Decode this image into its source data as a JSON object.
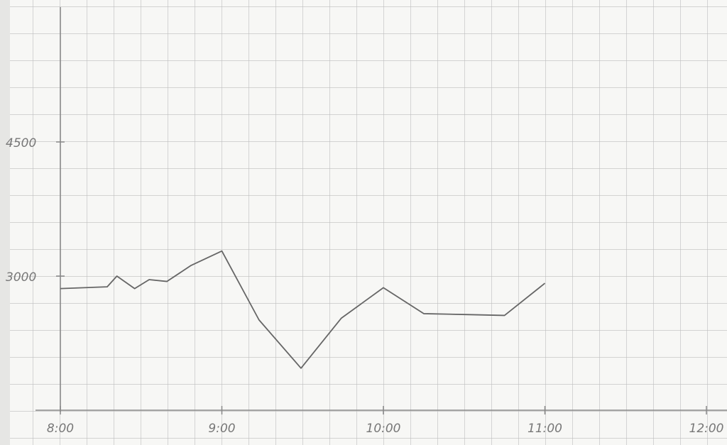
{
  "chart_data": {
    "type": "line",
    "x": [
      8.0,
      8.29,
      8.35,
      8.46,
      8.55,
      8.66,
      8.81,
      9.0,
      9.23,
      9.49,
      9.74,
      10.0,
      10.25,
      10.51,
      10.75,
      11.0
    ],
    "series": [
      {
        "color": "#666666",
        "values": [
          2860,
          2880,
          3000,
          2860,
          2960,
          2940,
          3120,
          3280,
          2510,
          1970,
          2530,
          2870,
          2580,
          2570,
          2560,
          2920
        ]
      }
    ],
    "xlim": [
      8,
      12
    ],
    "xticks": [
      {
        "value": 8,
        "label": "8:00"
      },
      {
        "value": 9,
        "label": "9:00"
      },
      {
        "value": 10,
        "label": "10:00"
      },
      {
        "value": 11,
        "label": "11:00"
      },
      {
        "value": 12,
        "label": "12:00"
      }
    ],
    "ylim": [
      1500,
      4500
    ],
    "yticks": [
      3000,
      4500
    ]
  }
}
